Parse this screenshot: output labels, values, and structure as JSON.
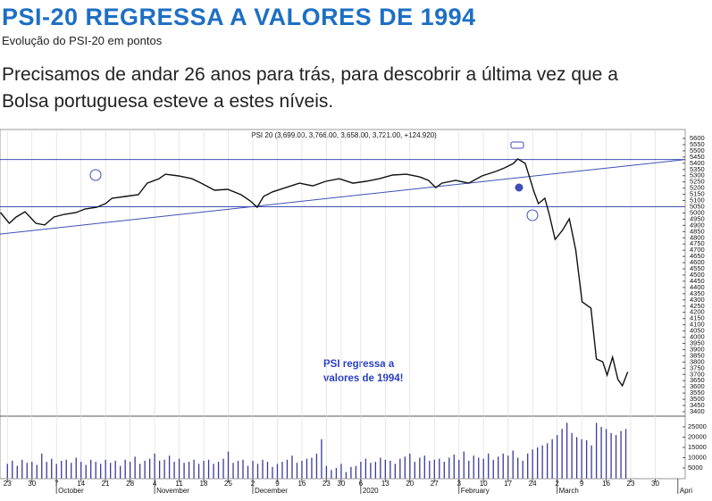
{
  "header": {
    "title": "PSI-20 REGRESSA A VALORES DE 1994",
    "subtitle": "Evolução do PSI-20 em pontos",
    "lead": [
      "Precisamos de andar 26 anos para trás, para descobrir a última vez que a",
      "Bolsa portuguesa esteve a estes níveis."
    ]
  },
  "chart_data": {
    "type": "line",
    "title": "PSI 20 (3,699.00, 3,766.00, 3,658.00, 3,721.00, +124.920)",
    "annotation": [
      "PSI regressa a",
      "valores de 1994!"
    ],
    "color": "#111111",
    "line_color": "#3f4fb3",
    "x": [
      -1.4,
      0.4,
      1.8,
      3.6,
      5.8,
      7.6,
      9.5,
      11.6,
      14,
      15.8,
      18.2,
      20,
      21.3,
      24,
      26.7,
      28.5,
      30.9,
      32.2,
      34.9,
      37.6,
      39.5,
      42.2,
      44.9,
      47.6,
      49.5,
      50.9,
      52.2,
      54,
      56.7,
      59.5,
      62.2,
      64.9,
      67.6,
      70.4,
      73.1,
      75.8,
      78.5,
      81.3,
      84,
      85.8,
      87.3,
      88.5,
      91.3,
      94,
      96.7,
      99.5,
      101.3,
      103.1,
      104,
      105.5,
      106.2,
      107.3,
      108.2,
      109.5,
      110.4,
      111.6,
      113.1,
      114.5,
      115.8,
      117.1,
      118.9,
      120,
      121.3,
      122.2,
      123.3,
      124.4,
      125.3,
      126.4
    ],
    "values": [
      5003,
      4917,
      4967,
      5010,
      4917,
      4903,
      4967,
      4989,
      5003,
      5032,
      5046,
      5075,
      5118,
      5133,
      5147,
      5240,
      5276,
      5312,
      5298,
      5276,
      5240,
      5183,
      5190,
      5147,
      5097,
      5046,
      5133,
      5169,
      5204,
      5240,
      5218,
      5255,
      5276,
      5240,
      5255,
      5276,
      5305,
      5312,
      5290,
      5262,
      5204,
      5240,
      5262,
      5240,
      5298,
      5334,
      5363,
      5399,
      5435,
      5399,
      5312,
      5169,
      5075,
      5118,
      4989,
      4787,
      4860,
      4953,
      4701,
      4284,
      4234,
      3824,
      3802,
      3695,
      3839,
      3659,
      3609,
      3721
    ],
    "xlim": [
      -1.5,
      138.1
    ],
    "xticks": [
      {
        "value": 0,
        "label": "23"
      },
      {
        "value": 5,
        "label": "30"
      },
      {
        "value": 10,
        "label": "7"
      },
      {
        "value": 15,
        "label": "14"
      },
      {
        "value": 20,
        "label": "21"
      },
      {
        "value": 25,
        "label": "28"
      },
      {
        "value": 30,
        "label": "4"
      },
      {
        "value": 35,
        "label": "11"
      },
      {
        "value": 40,
        "label": "18"
      },
      {
        "value": 45,
        "label": "25"
      },
      {
        "value": 50,
        "label": "2"
      },
      {
        "value": 55,
        "label": "9"
      },
      {
        "value": 60,
        "label": "16"
      },
      {
        "value": 65,
        "label": "23"
      },
      {
        "value": 68,
        "label": "30"
      },
      {
        "value": 72,
        "label": "6"
      },
      {
        "value": 77,
        "label": "13"
      },
      {
        "value": 82,
        "label": "20"
      },
      {
        "value": 87,
        "label": "27"
      },
      {
        "value": 92,
        "label": "3"
      },
      {
        "value": 97,
        "label": "10"
      },
      {
        "value": 102,
        "label": "17"
      },
      {
        "value": 107,
        "label": "24"
      },
      {
        "value": 112,
        "label": "2"
      },
      {
        "value": 117,
        "label": "9"
      },
      {
        "value": 122,
        "label": "16"
      },
      {
        "value": 127,
        "label": "23"
      },
      {
        "value": 132,
        "label": "30"
      }
    ],
    "month_labels": [
      {
        "value": 10,
        "label": "October"
      },
      {
        "value": 30,
        "label": "November"
      },
      {
        "value": 50,
        "label": "December"
      },
      {
        "value": 72,
        "label": "2020"
      },
      {
        "value": 92,
        "label": "February"
      },
      {
        "value": 112,
        "label": "March"
      },
      {
        "value": 136.6,
        "label": "Apri"
      }
    ],
    "ylim": [
      3400,
      5600
    ],
    "yticks": [
      3400,
      3450,
      3500,
      3550,
      3600,
      3650,
      3700,
      3750,
      3800,
      3850,
      3900,
      3950,
      4000,
      4050,
      4100,
      4150,
      4200,
      4250,
      4300,
      4350,
      4400,
      4450,
      4500,
      4550,
      4600,
      4650,
      4700,
      4750,
      4800,
      4850,
      4900,
      4950,
      5000,
      5050,
      5100,
      5150,
      5200,
      5250,
      5300,
      5350,
      5400,
      5450,
      5500,
      5550,
      5600
    ],
    "levels": [
      5430,
      5050
    ],
    "trendline": {
      "x": [
        -1.5,
        138.1
      ],
      "y": [
        4830,
        5430
      ]
    },
    "grid": true,
    "volume": {
      "type": "bar",
      "color": "#3a3a9a",
      "ylim": [
        0,
        30000
      ],
      "yticks": [
        5000,
        10000,
        15000,
        20000,
        25000
      ],
      "values": [
        7000,
        8500,
        6000,
        9000,
        7500,
        8000,
        6500,
        12000,
        8000,
        9500,
        7000,
        8500,
        9000,
        7500,
        10000,
        8000,
        6500,
        9000,
        8000,
        7000,
        9000,
        7500,
        8500,
        6000,
        9000,
        8000,
        10500,
        7000,
        8500,
        9500,
        12000,
        8500,
        9000,
        11000,
        8000,
        9500,
        7500,
        8000,
        9000,
        7000,
        8500,
        9000,
        7000,
        8000,
        9500,
        13000,
        7500,
        8500,
        9000,
        6000,
        8500,
        7000,
        9000,
        8000,
        5500,
        7000,
        8000,
        9000,
        11000,
        7500,
        8500,
        9500,
        10000,
        12000,
        19000,
        6000,
        4000,
        5000,
        7000,
        3000,
        5500,
        6000,
        8000,
        9500,
        7500,
        8000,
        10000,
        9000,
        8500,
        7000,
        9500,
        10500,
        12000,
        8000,
        10000,
        11000,
        8500,
        9000,
        9500,
        8000,
        10000,
        11500,
        9000,
        13000,
        8500,
        11000,
        10000,
        9500,
        12000,
        9000,
        10500,
        12000,
        11000,
        13500,
        10000,
        8500,
        12000,
        14000,
        15000,
        16000,
        17000,
        19000,
        21000,
        24000,
        27000,
        22000,
        20000,
        19000,
        18500,
        16000,
        27000,
        25000,
        24000,
        22000,
        21000,
        23000,
        24000
      ]
    }
  }
}
